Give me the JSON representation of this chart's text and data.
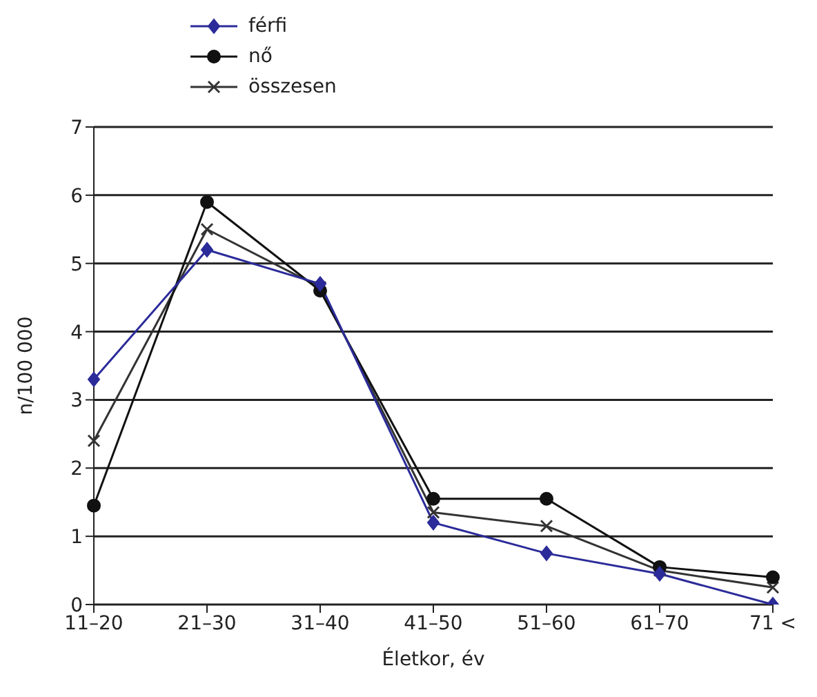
{
  "chart_data": {
    "type": "line",
    "xlabel": "Életkor, év",
    "ylabel": "n/100 000",
    "categories": [
      "11–20",
      "21–30",
      "31–40",
      "41–50",
      "51–60",
      "61–70",
      "71 <"
    ],
    "series": [
      {
        "name": "férfi",
        "color": "#2b2b9a",
        "marker": "diamond",
        "values": [
          3.3,
          5.2,
          4.7,
          1.2,
          0.75,
          0.45,
          0
        ]
      },
      {
        "name": "nő",
        "color": "#111111",
        "marker": "circle",
        "values": [
          1.45,
          5.9,
          4.6,
          1.55,
          1.55,
          0.55,
          0.4
        ]
      },
      {
        "name": "összesen",
        "color": "#333333",
        "marker": "cross",
        "values": [
          2.4,
          5.5,
          4.65,
          1.35,
          1.15,
          0.5,
          0.25
        ]
      }
    ],
    "ylim": [
      0,
      7
    ],
    "yticks": [
      0,
      1,
      2,
      3,
      4,
      5,
      6,
      7
    ],
    "grid": "y",
    "legend": "top left",
    "line_style": "solid"
  }
}
